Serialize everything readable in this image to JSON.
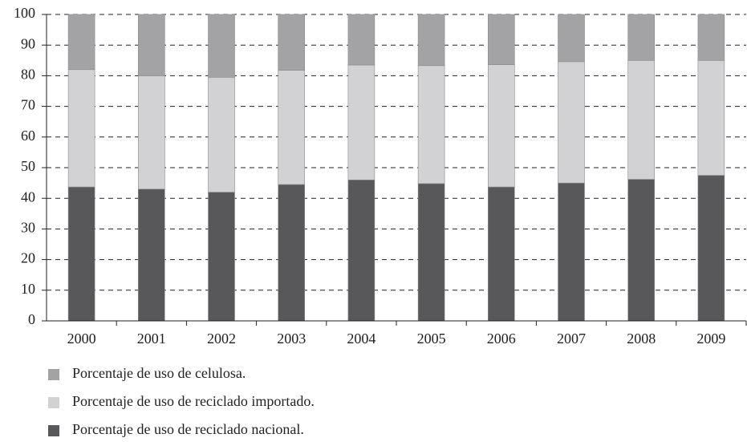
{
  "chart_data": {
    "type": "stacked_bar",
    "categories": [
      "2000",
      "2001",
      "2002",
      "2003",
      "2004",
      "2005",
      "2006",
      "2007",
      "2008",
      "2009"
    ],
    "series": [
      {
        "name": "Porcentaje de uso de celulosa.",
        "color": "#a3a3a5",
        "values": [
          18,
          20,
          20.5,
          18.2,
          16.5,
          16.7,
          16.4,
          15.4,
          15,
          15
        ]
      },
      {
        "name": "Porcentaje de uso de reciclado importado.",
        "color": "#d2d2d4",
        "values": [
          38.3,
          37,
          37.5,
          37.3,
          37.5,
          38.5,
          39.9,
          39.6,
          38.8,
          37.5
        ]
      },
      {
        "name": "Porcentaje de uso de reciclado nacional.",
        "color": "#58585a",
        "values": [
          43.7,
          43,
          42,
          44.5,
          46,
          44.8,
          43.7,
          45,
          46.2,
          47.5
        ]
      }
    ],
    "ylim": [
      0,
      100
    ],
    "yticks": [
      0,
      10,
      20,
      30,
      40,
      50,
      60,
      70,
      80,
      90,
      100
    ],
    "grid": true
  }
}
